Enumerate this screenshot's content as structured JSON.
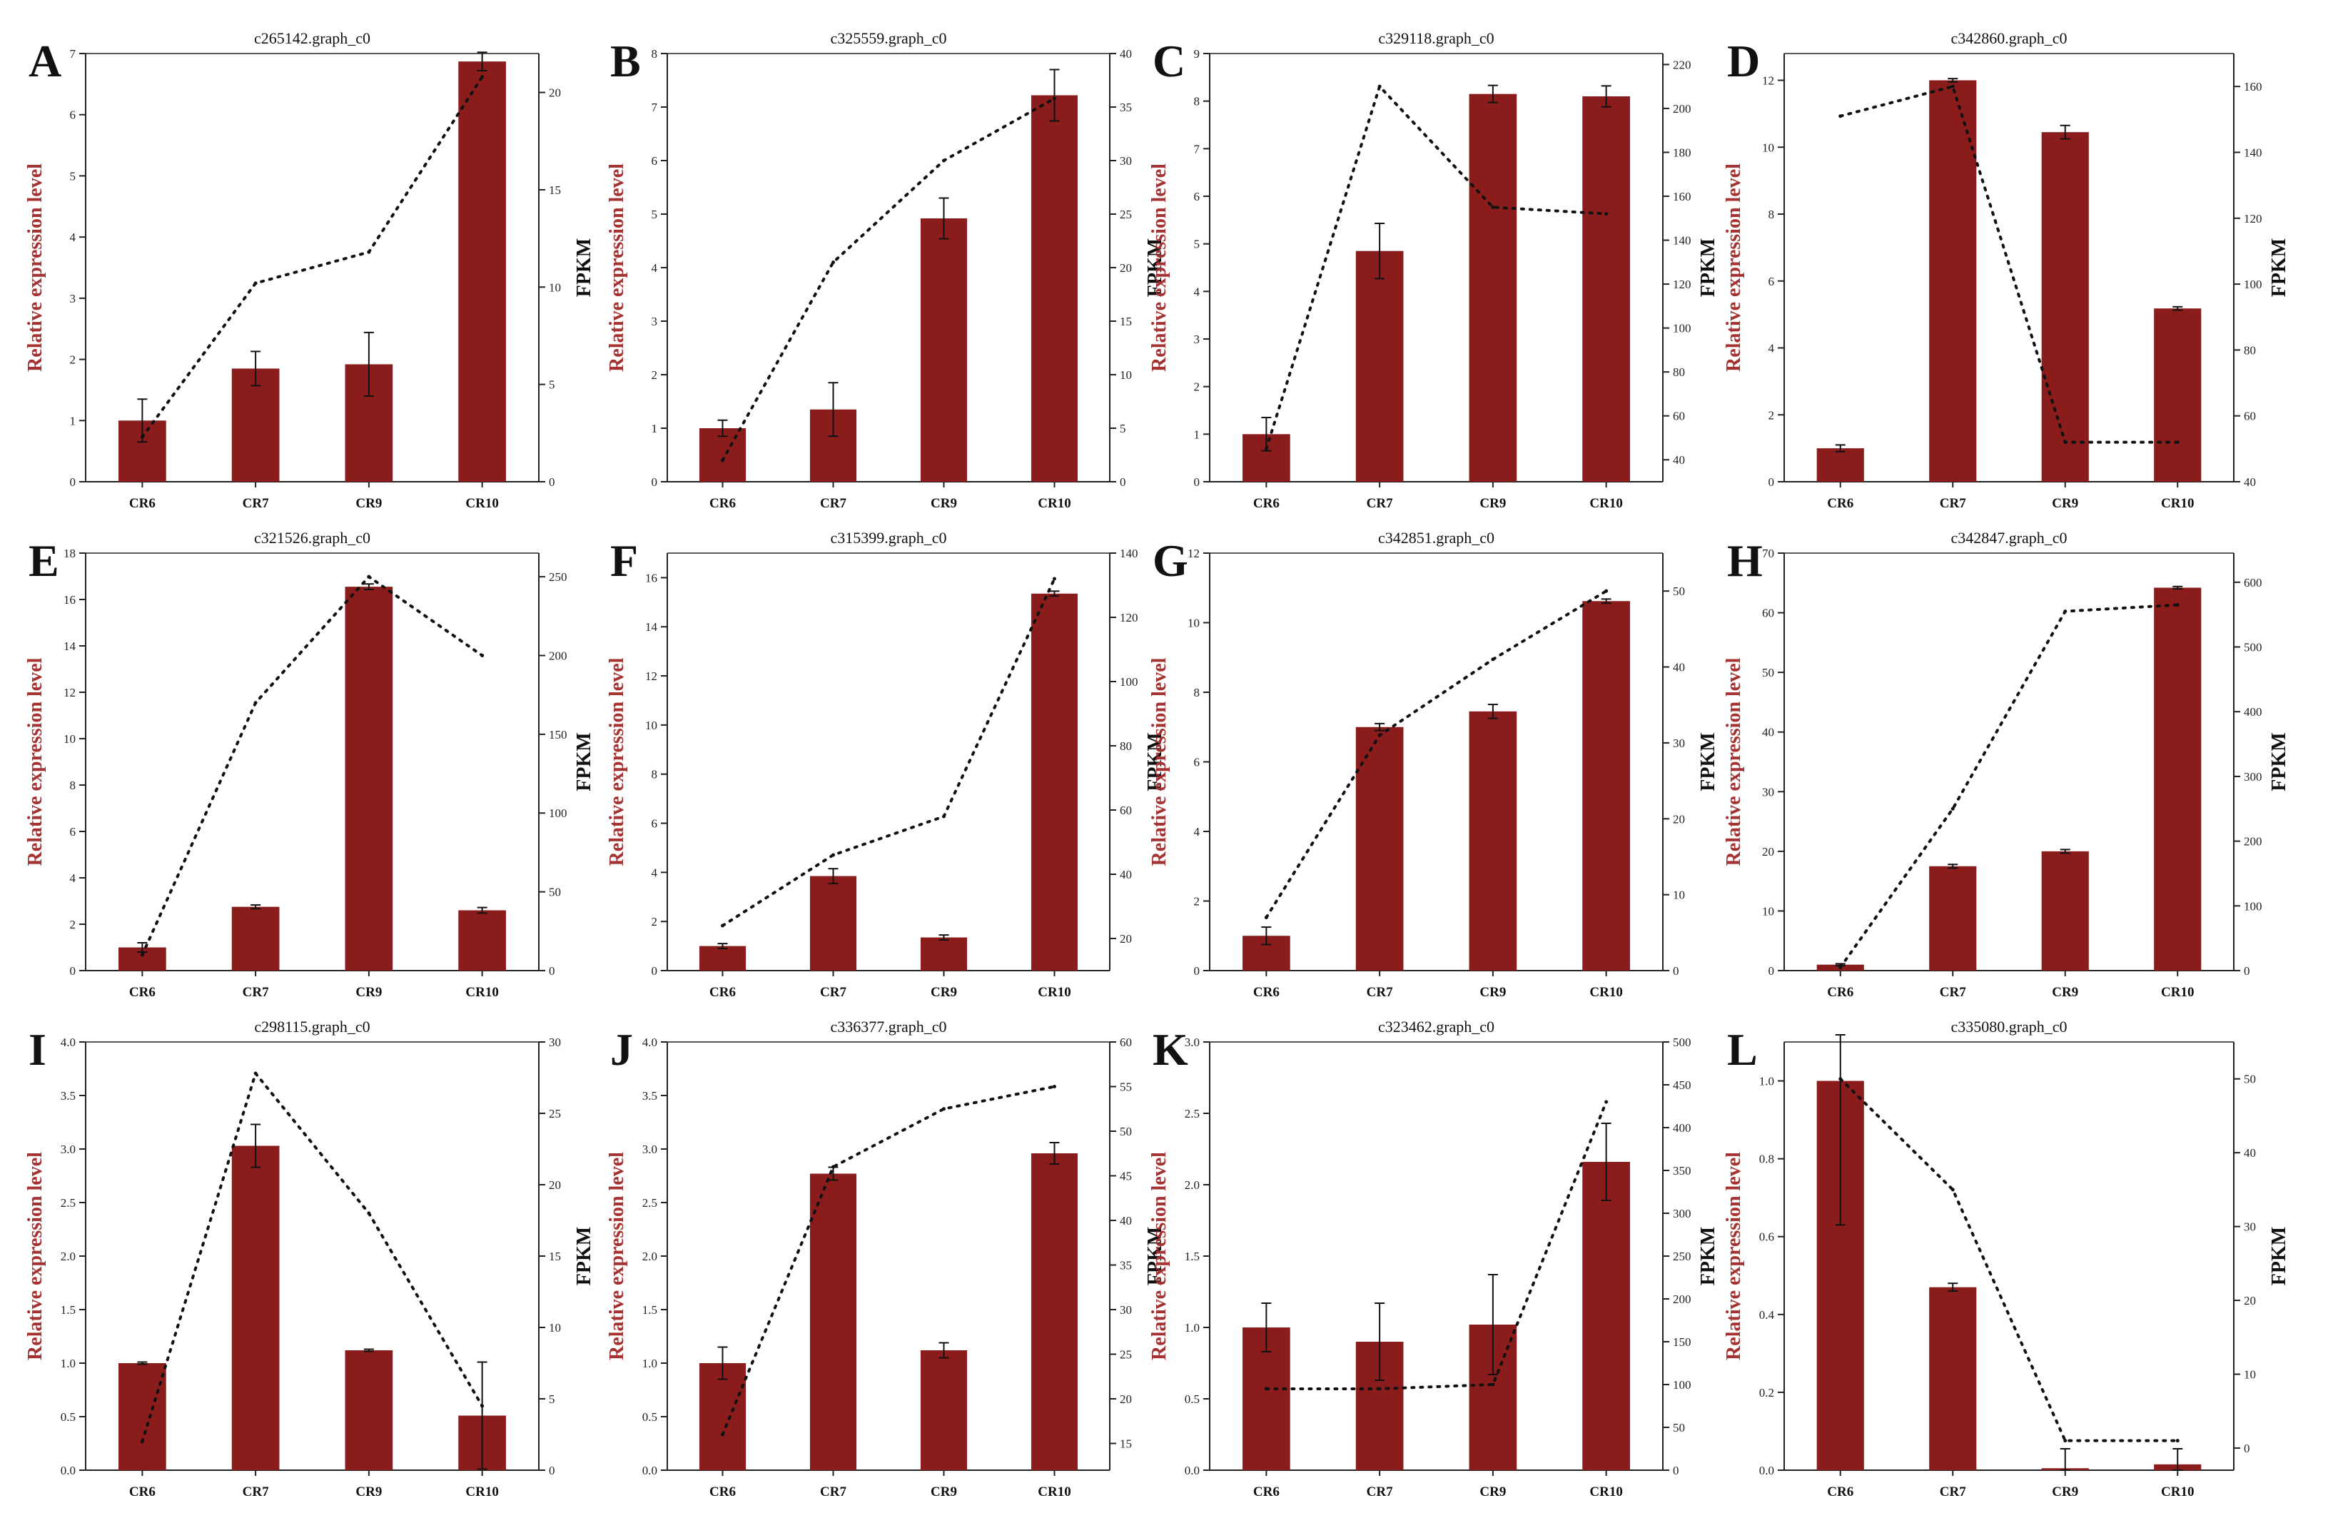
{
  "figure": {
    "bar_color": "#8b1c1c",
    "axis_color": "#222222",
    "line_color": "#111111",
    "left_label_color": "#a53232"
  },
  "chart_data": [
    {
      "letter": "A",
      "title": "c265142.graph_c0",
      "type": "bar",
      "categories": [
        "CR6",
        "CR7",
        "CR9",
        "CR10"
      ],
      "ylabel": "Relative expression level",
      "y2label": "FPKM",
      "ylim": [
        0,
        7
      ],
      "yticks": [
        0,
        1,
        2,
        3,
        4,
        5,
        6,
        7
      ],
      "y2lim": [
        0,
        22
      ],
      "y2ticks": [
        0,
        5,
        10,
        15,
        20
      ],
      "values": [
        1.0,
        1.85,
        1.92,
        6.87
      ],
      "errors": [
        0.35,
        0.28,
        0.52,
        0.15
      ],
      "line": [
        2.3,
        10.2,
        11.8,
        20.8
      ],
      "line_err_last": 0.8
    },
    {
      "letter": "B",
      "title": "c325559.graph_c0",
      "type": "bar",
      "categories": [
        "CR6",
        "CR7",
        "CR9",
        "CR10"
      ],
      "ylabel": "Relative expression level",
      "y2label": "FPKM",
      "ylim": [
        0,
        8
      ],
      "yticks": [
        0,
        1,
        2,
        3,
        4,
        5,
        6,
        7,
        8
      ],
      "y2lim": [
        0,
        40
      ],
      "y2ticks": [
        0,
        5,
        10,
        15,
        20,
        25,
        30,
        35,
        40
      ],
      "values": [
        1.0,
        1.35,
        4.92,
        7.22
      ],
      "errors": [
        0.15,
        0.5,
        0.38,
        0.48
      ],
      "line": [
        2.0,
        20.5,
        30.0,
        35.8
      ]
    },
    {
      "letter": "C",
      "title": "c329118.graph_c0",
      "type": "bar",
      "categories": [
        "CR6",
        "CR7",
        "CR9",
        "CR10"
      ],
      "ylabel": "Relative expression level",
      "y2label": "FPKM",
      "ylim": [
        0,
        9
      ],
      "yticks": [
        0,
        1,
        2,
        3,
        4,
        5,
        6,
        7,
        8,
        9
      ],
      "y2lim": [
        30,
        225
      ],
      "y2ticks": [
        40,
        60,
        80,
        100,
        120,
        140,
        160,
        180,
        200,
        220
      ],
      "values": [
        1.0,
        4.85,
        8.15,
        8.1
      ],
      "errors": [
        0.35,
        0.58,
        0.18,
        0.22
      ],
      "line": [
        45,
        210,
        155,
        152
      ]
    },
    {
      "letter": "D",
      "title": "c342860.graph_c0",
      "type": "bar",
      "categories": [
        "CR6",
        "CR7",
        "CR9",
        "CR10"
      ],
      "ylabel": "Relative expression level",
      "y2label": "FPKM",
      "ylim": [
        0,
        12.8
      ],
      "yticks": [
        0,
        2,
        4,
        6,
        8,
        10,
        12
      ],
      "y2lim": [
        40,
        170
      ],
      "y2ticks": [
        40,
        60,
        80,
        100,
        120,
        140,
        160
      ],
      "values": [
        1.0,
        12.0,
        10.45,
        5.18
      ],
      "errors": [
        0.1,
        0.05,
        0.2,
        0.05
      ],
      "line": [
        151,
        160,
        52,
        52
      ]
    },
    {
      "letter": "E",
      "title": "c321526.graph_c0",
      "type": "bar",
      "categories": [
        "CR6",
        "CR7",
        "CR9",
        "CR10"
      ],
      "ylabel": "Relative expression level",
      "y2label": "FPKM",
      "ylim": [
        0,
        18
      ],
      "yticks": [
        0,
        2,
        4,
        6,
        8,
        10,
        12,
        14,
        16,
        18
      ],
      "y2lim": [
        0,
        265
      ],
      "y2ticks": [
        0,
        50,
        100,
        150,
        200,
        250
      ],
      "values": [
        1.0,
        2.75,
        16.55,
        2.6
      ],
      "errors": [
        0.2,
        0.08,
        0.12,
        0.12
      ],
      "line": [
        10,
        170,
        250,
        200
      ]
    },
    {
      "letter": "F",
      "title": "c315399.graph_c0",
      "type": "bar",
      "categories": [
        "CR6",
        "CR7",
        "CR9",
        "CR10"
      ],
      "ylabel": "Relative expression level",
      "y2label": "FPKM",
      "ylim": [
        0,
        17
      ],
      "yticks": [
        0,
        2,
        4,
        6,
        8,
        10,
        12,
        14,
        16
      ],
      "y2lim": [
        10,
        140
      ],
      "y2ticks": [
        20,
        40,
        60,
        80,
        100,
        120,
        140
      ],
      "values": [
        1.0,
        3.85,
        1.35,
        15.35
      ],
      "errors": [
        0.1,
        0.3,
        0.1,
        0.1
      ],
      "line": [
        24,
        46,
        58,
        132
      ]
    },
    {
      "letter": "G",
      "title": "c342851.graph_c0",
      "type": "bar",
      "categories": [
        "CR6",
        "CR7",
        "CR9",
        "CR10"
      ],
      "ylabel": "Relative expression level",
      "y2label": "FPKM",
      "ylim": [
        0,
        12
      ],
      "yticks": [
        0,
        2,
        4,
        6,
        8,
        10,
        12
      ],
      "y2lim": [
        0,
        55
      ],
      "y2ticks": [
        0,
        10,
        20,
        30,
        40,
        50
      ],
      "values": [
        1.0,
        7.0,
        7.45,
        10.62
      ],
      "errors": [
        0.25,
        0.1,
        0.2,
        0.06
      ],
      "line": [
        7,
        31,
        41,
        50
      ]
    },
    {
      "letter": "H",
      "title": "c342847.graph_c0",
      "type": "bar",
      "categories": [
        "CR6",
        "CR7",
        "CR9",
        "CR10"
      ],
      "ylabel": "Relative expression level",
      "y2label": "FPKM",
      "ylim": [
        0,
        70
      ],
      "yticks": [
        0,
        10,
        20,
        30,
        40,
        50,
        60,
        70
      ],
      "y2lim": [
        0,
        645
      ],
      "y2ticks": [
        0,
        100,
        200,
        300,
        400,
        500,
        600
      ],
      "values": [
        1.0,
        17.5,
        20.0,
        64.2
      ],
      "errors": [
        0.15,
        0.3,
        0.3,
        0.2
      ],
      "line": [
        5,
        250,
        555,
        565
      ]
    },
    {
      "letter": "I",
      "title": "c298115.graph_c0",
      "type": "bar",
      "categories": [
        "CR6",
        "CR7",
        "CR9",
        "CR10"
      ],
      "ylabel": "Relative expression level",
      "y2label": "FPKM",
      "ylim": [
        0,
        4
      ],
      "yticks": [
        0,
        0.5,
        1.0,
        1.5,
        2.0,
        2.5,
        3.0,
        3.5,
        4.0
      ],
      "ytick_labels": [
        "0.0",
        "0.5",
        "1.0",
        "1.5",
        "2.0",
        "2.5",
        "3.0",
        "3.5",
        "4.0"
      ],
      "y2lim": [
        0,
        30
      ],
      "y2ticks": [
        0,
        5,
        10,
        15,
        20,
        25,
        30
      ],
      "values": [
        1.0,
        3.03,
        1.12,
        0.51
      ],
      "errors": [
        0.01,
        0.2,
        0.01,
        0.5
      ],
      "line": [
        2.0,
        27.8,
        18.0,
        4.5
      ]
    },
    {
      "letter": "J",
      "title": "c336377.graph_c0",
      "type": "bar",
      "categories": [
        "CR6",
        "CR7",
        "CR9",
        "CR10"
      ],
      "ylabel": "Relative expression level",
      "y2label": "FPKM",
      "ylim": [
        0,
        4
      ],
      "yticks": [
        0,
        0.5,
        1.0,
        1.5,
        2.0,
        2.5,
        3.0,
        3.5,
        4.0
      ],
      "ytick_labels": [
        "0.0",
        "0.5",
        "1.0",
        "1.5",
        "2.0",
        "2.5",
        "3.0",
        "3.5",
        "4.0"
      ],
      "y2lim": [
        12,
        60
      ],
      "y2ticks": [
        15,
        20,
        25,
        30,
        35,
        40,
        45,
        50,
        55,
        60
      ],
      "values": [
        1.0,
        2.77,
        1.12,
        2.96
      ],
      "errors": [
        0.15,
        0.06,
        0.07,
        0.1
      ],
      "line": [
        16,
        46,
        52.5,
        55
      ]
    },
    {
      "letter": "K",
      "title": "c323462.graph_c0",
      "type": "bar",
      "categories": [
        "CR6",
        "CR7",
        "CR9",
        "CR10"
      ],
      "ylabel": "Relative expression level",
      "y2label": "FPKM",
      "ylim": [
        0,
        3
      ],
      "yticks": [
        0,
        0.5,
        1.0,
        1.5,
        2.0,
        2.5,
        3.0
      ],
      "ytick_labels": [
        "0.0",
        "0.5",
        "1.0",
        "1.5",
        "2.0",
        "2.5",
        "3.0"
      ],
      "y2lim": [
        0,
        500
      ],
      "y2ticks": [
        0,
        50,
        100,
        150,
        200,
        250,
        300,
        350,
        400,
        450,
        500
      ],
      "values": [
        1.0,
        0.9,
        1.02,
        2.16
      ],
      "errors": [
        0.17,
        0.27,
        0.35,
        0.27
      ],
      "line": [
        95,
        95,
        100,
        430
      ]
    },
    {
      "letter": "L",
      "title": "c335080.graph_c0",
      "type": "bar",
      "categories": [
        "CR6",
        "CR7",
        "CR9",
        "CR10"
      ],
      "ylabel": "Relative expression level",
      "y2label": "FPKM",
      "ylim": [
        0,
        1.1
      ],
      "yticks": [
        0,
        0.2,
        0.4,
        0.6,
        0.8,
        1.0
      ],
      "ytick_labels": [
        "0.0",
        "0.2",
        "0.4",
        "0.6",
        "0.8",
        "1.0"
      ],
      "y2lim": [
        -3,
        55
      ],
      "y2ticks": [
        0,
        10,
        20,
        30,
        40,
        50
      ],
      "values": [
        1.0,
        0.47,
        0.005,
        0.015
      ],
      "errors": [
        0.37,
        0.01,
        0.05,
        0.04
      ],
      "line": [
        50,
        35,
        1,
        1
      ]
    }
  ]
}
